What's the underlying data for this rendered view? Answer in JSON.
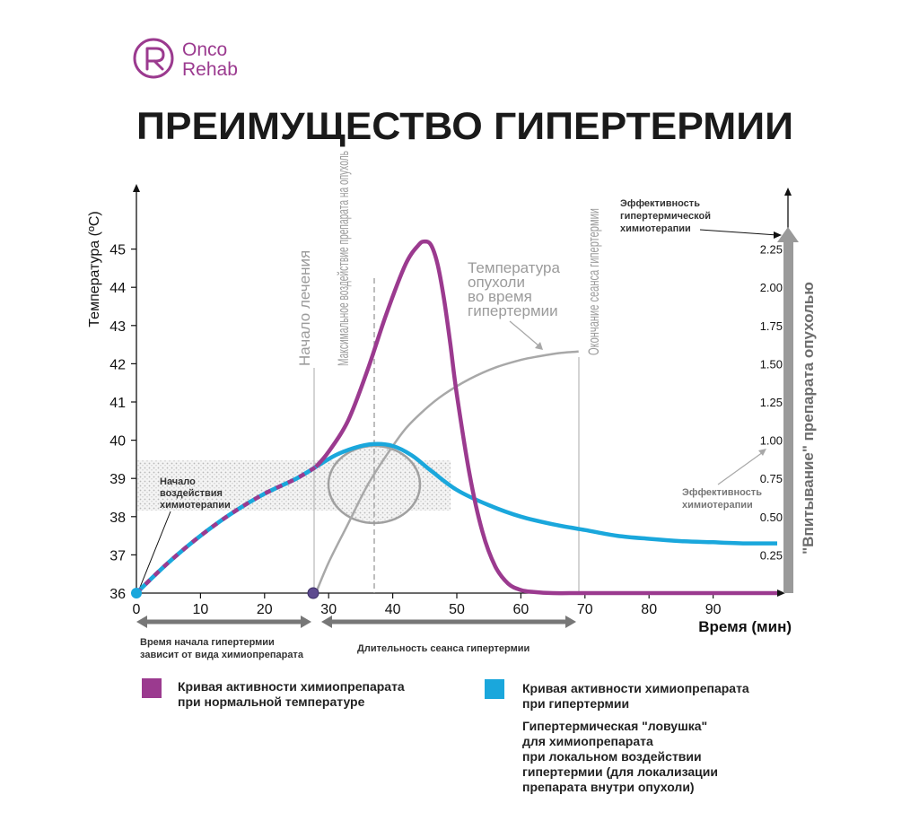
{
  "brand": {
    "line1": "Onco",
    "line2": "Rehab",
    "color": "#9b3a8f",
    "logo_icon": "onco-rehab-logo-icon"
  },
  "title": "ПРЕИМУЩЕСТВО ГИПЕРТЕРМИИ",
  "chart_data": {
    "type": "line",
    "title": "ПРЕИМУЩЕСТВО ГИПЕРТЕРМИИ",
    "xlabel": "Время (мин)",
    "ylabel": "Температура (ºС)",
    "y2label": "\"Впитывание\" препарата опухолью",
    "xlim": [
      0,
      100
    ],
    "ylim": [
      36,
      46
    ],
    "y2lim": [
      0,
      2.5
    ],
    "x_ticks": [
      0,
      10,
      20,
      30,
      40,
      50,
      60,
      70,
      80,
      90
    ],
    "y_ticks": [
      36,
      37,
      38,
      39,
      40,
      41,
      42,
      43,
      44,
      45
    ],
    "y2_ticks": [
      0.25,
      0.5,
      0.75,
      1.0,
      1.25,
      1.5,
      1.75,
      2.0,
      2.25
    ],
    "y2_tick_labels": [
      "0.25",
      "0.50",
      "0.75",
      "1.00",
      "1.25",
      "1.50",
      "1.75",
      "2.00",
      "2.25"
    ],
    "grid": false,
    "series": [
      {
        "name": "Кривая активности химиопрепарата при нормальной температуре",
        "color": "#9b3a8f",
        "x": [
          0,
          5,
          10,
          15,
          20,
          25,
          28,
          30,
          33,
          36,
          39,
          42,
          44,
          45,
          46,
          47,
          48,
          49,
          50,
          52,
          54,
          56,
          58,
          60,
          62,
          65,
          70,
          80,
          90,
          100
        ],
        "y": [
          36,
          36.8,
          37.5,
          38.1,
          38.6,
          39.0,
          39.3,
          39.7,
          40.5,
          41.8,
          43.3,
          44.6,
          45.1,
          45.2,
          45.1,
          44.6,
          43.7,
          42.5,
          41.2,
          39.1,
          37.6,
          36.7,
          36.25,
          36.08,
          36.03,
          36.0,
          36.0,
          36.0,
          36.0,
          36.0
        ]
      },
      {
        "name": "Кривая активности химиопрепарата при гипертермии",
        "color": "#1aa7dc",
        "x": [
          0,
          5,
          10,
          15,
          20,
          25,
          28,
          31,
          34,
          37,
          40,
          43,
          46,
          50,
          55,
          60,
          65,
          70,
          75,
          80,
          85,
          90,
          95,
          100
        ],
        "y": [
          36,
          36.8,
          37.5,
          38.1,
          38.6,
          39.0,
          39.3,
          39.6,
          39.8,
          39.9,
          39.85,
          39.6,
          39.2,
          38.7,
          38.3,
          38.0,
          37.8,
          37.65,
          37.5,
          37.42,
          37.36,
          37.33,
          37.3,
          37.3
        ]
      },
      {
        "name": "Температура опухоли во время гипертермии",
        "color": "#a8a8a8",
        "x": [
          28,
          30,
          33,
          36,
          39,
          42,
          45,
          48,
          52,
          56,
          60,
          63,
          66,
          69
        ],
        "y": [
          36,
          36.8,
          37.8,
          38.8,
          39.6,
          40.3,
          40.8,
          41.2,
          41.6,
          41.9,
          42.1,
          42.2,
          42.28,
          42.32
        ]
      }
    ],
    "markers": [
      {
        "label": "Начало лечения",
        "x": 27.5
      },
      {
        "label": "Максимальное воздействие препарата на опухоль",
        "x": 37
      },
      {
        "label": "Окончание сеанса гипертермии",
        "x": 69
      }
    ],
    "annotations": {
      "start_chemo": [
        "Начало",
        "воздействия",
        "химиотерапии"
      ],
      "tumor_temp": [
        "Температура",
        "опухоли",
        "во время",
        "гипертермии"
      ],
      "eff_hyper": [
        "Эффективность",
        "гипертермической",
        "химиотерапии"
      ],
      "eff_chemo": [
        "Эффективность",
        "химиотерапии"
      ],
      "range_left": [
        "Время начала гипертермии",
        "зависит от вида химиопрепарата"
      ],
      "range_right": "Длительность сеанса гипертермии"
    }
  },
  "legend": {
    "normal": {
      "color": "#9b3a8f",
      "lines": [
        "Кривая активности химиопрепарата",
        "при нормальной температуре"
      ]
    },
    "hyper": {
      "color": "#1aa7dc",
      "lines": [
        "Кривая активности химиопрепарата",
        "при гипертермии"
      ]
    },
    "trap": [
      "Гипертермическая \"ловушка\"",
      "для химиопрепарата",
      "при локальном воздействии",
      "гипертермии (для локализации",
      "препарата внутри опухоли)"
    ]
  }
}
